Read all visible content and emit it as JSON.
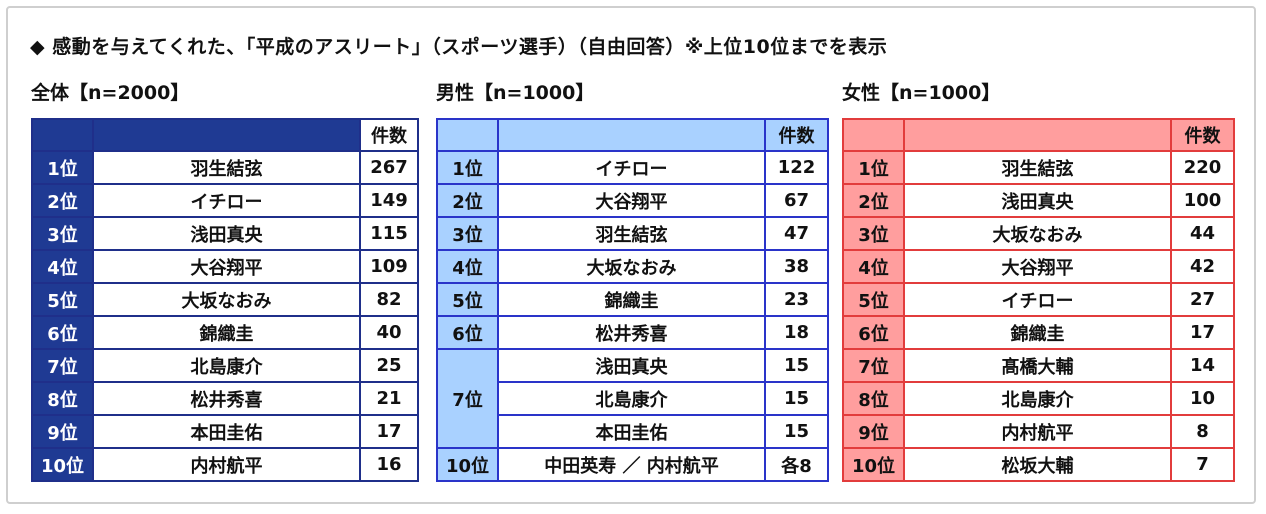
{
  "title": "◆ 感動を与えてくれた、「平成のアスリート」（スポーツ選手）（自由回答）※上位10位までを表示",
  "count_header": "件数",
  "sections": {
    "total": {
      "label": "全体【n=2000】",
      "rows": [
        {
          "rank": "1位",
          "name": "羽生結弦",
          "count": "267"
        },
        {
          "rank": "2位",
          "name": "イチロー",
          "count": "149"
        },
        {
          "rank": "3位",
          "name": "浅田真央",
          "count": "115"
        },
        {
          "rank": "4位",
          "name": "大谷翔平",
          "count": "109"
        },
        {
          "rank": "5位",
          "name": "大坂なおみ",
          "count": "82"
        },
        {
          "rank": "6位",
          "name": "錦織圭",
          "count": "40"
        },
        {
          "rank": "7位",
          "name": "北島康介",
          "count": "25"
        },
        {
          "rank": "8位",
          "name": "松井秀喜",
          "count": "21"
        },
        {
          "rank": "9位",
          "name": "本田圭佑",
          "count": "17"
        },
        {
          "rank": "10位",
          "name": "内村航平",
          "count": "16"
        }
      ]
    },
    "male": {
      "label": "男性【n=1000】",
      "rows": [
        {
          "rank": "1位",
          "name": "イチロー",
          "count": "122"
        },
        {
          "rank": "2位",
          "name": "大谷翔平",
          "count": "67"
        },
        {
          "rank": "3位",
          "name": "羽生結弦",
          "count": "47"
        },
        {
          "rank": "4位",
          "name": "大坂なおみ",
          "count": "38"
        },
        {
          "rank": "5位",
          "name": "錦織圭",
          "count": "23"
        },
        {
          "rank": "6位",
          "name": "松井秀喜",
          "count": "18"
        },
        {
          "rank": "7位",
          "name": "浅田真央",
          "count": "15"
        },
        {
          "rank": "",
          "name": "北島康介",
          "count": "15"
        },
        {
          "rank": "",
          "name": "本田圭佑",
          "count": "15"
        },
        {
          "rank": "10位",
          "name": "中田英寿 ／ 内村航平",
          "count": "各8"
        }
      ]
    },
    "female": {
      "label": "女性【n=1000】",
      "rows": [
        {
          "rank": "1位",
          "name": "羽生結弦",
          "count": "220"
        },
        {
          "rank": "2位",
          "name": "浅田真央",
          "count": "100"
        },
        {
          "rank": "3位",
          "name": "大坂なおみ",
          "count": "44"
        },
        {
          "rank": "4位",
          "name": "大谷翔平",
          "count": "42"
        },
        {
          "rank": "5位",
          "name": "イチロー",
          "count": "27"
        },
        {
          "rank": "6位",
          "name": "錦織圭",
          "count": "17"
        },
        {
          "rank": "7位",
          "name": "髙橋大輔",
          "count": "14"
        },
        {
          "rank": "8位",
          "name": "北島康介",
          "count": "10"
        },
        {
          "rank": "9位",
          "name": "内村航平",
          "count": "8"
        },
        {
          "rank": "10位",
          "name": "松坂大輔",
          "count": "7"
        }
      ]
    }
  }
}
